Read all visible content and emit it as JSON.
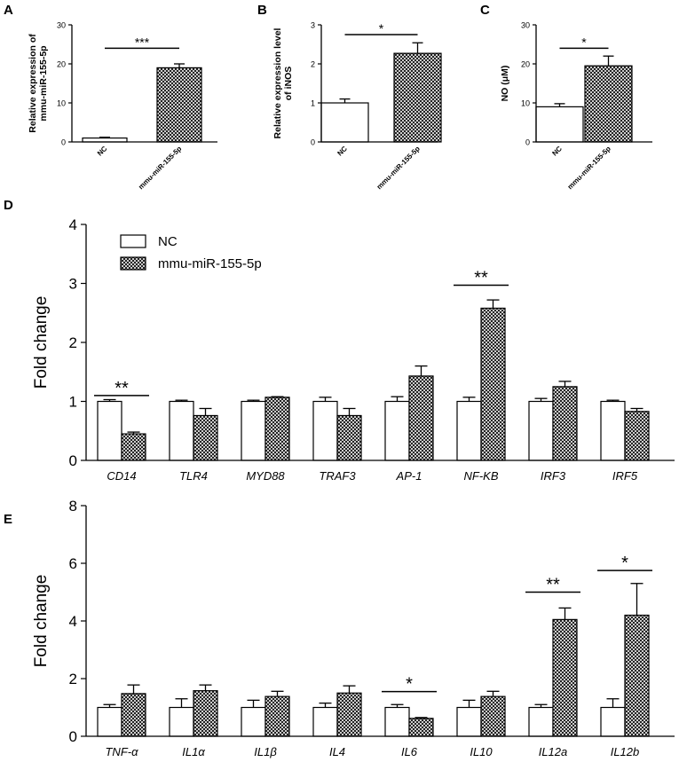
{
  "panel_labels": [
    "A",
    "B",
    "C",
    "D",
    "E"
  ],
  "legend": {
    "nc": "NC",
    "mir": "mmu-miR-155-5p"
  },
  "chart_data": [
    {
      "panel": "A",
      "type": "bar",
      "categories": [
        "NC",
        "mmu-miR-155-5p"
      ],
      "values": [
        1.0,
        19.0
      ],
      "errors": [
        0.2,
        1.0
      ],
      "ylabel": "Relative expression of mmu-miR-155-5p",
      "ylabel_lines": [
        "Relative expression of",
        "mmu-miR-155-5p"
      ],
      "ylim": [
        0,
        30
      ],
      "yticks": [
        0,
        10,
        20,
        30
      ],
      "significance": [
        {
          "label": "***",
          "y": 24
        }
      ]
    },
    {
      "panel": "B",
      "type": "bar",
      "categories": [
        "NC",
        "mmu-miR-155-5p"
      ],
      "values": [
        1.0,
        2.27
      ],
      "errors": [
        0.1,
        0.27
      ],
      "ylabel": "Relative expression level of iNOS",
      "ylabel_lines": [
        "Relative expression level",
        "of iNOS"
      ],
      "ylim": [
        0,
        3
      ],
      "yticks": [
        0,
        1,
        2,
        3
      ],
      "significance": [
        {
          "label": "*",
          "y": 2.75
        }
      ]
    },
    {
      "panel": "C",
      "type": "bar",
      "categories": [
        "NC",
        "mmu-miR-155-5p"
      ],
      "values": [
        9.0,
        19.5
      ],
      "errors": [
        0.8,
        2.5
      ],
      "ylabel": "NO (μM)",
      "ylabel_lines": [
        "NO (μM)"
      ],
      "ylim": [
        0,
        30
      ],
      "yticks": [
        0,
        10,
        20,
        30
      ],
      "significance": [
        {
          "label": "*",
          "y": 24
        }
      ]
    },
    {
      "panel": "D",
      "type": "bar",
      "categories": [
        "CD14",
        "TLR4",
        "MYD88",
        "TRAF3",
        "AP-1",
        "NF-KB",
        "IRF3",
        "IRF5"
      ],
      "series": [
        {
          "name": "NC",
          "values": [
            1.0,
            1.0,
            1.0,
            1.0,
            1.0,
            1.0,
            1.0,
            1.0
          ],
          "errors": [
            0.03,
            0.02,
            0.02,
            0.07,
            0.08,
            0.07,
            0.05,
            0.02
          ]
        },
        {
          "name": "mmu-miR-155-5p",
          "values": [
            0.45,
            0.76,
            1.07,
            0.76,
            1.43,
            2.58,
            1.25,
            0.83
          ],
          "errors": [
            0.03,
            0.12,
            0.01,
            0.12,
            0.17,
            0.14,
            0.09,
            0.05
          ]
        }
      ],
      "ylabel": "Fold change",
      "ylim": [
        0,
        4
      ],
      "yticks": [
        0,
        1,
        2,
        3,
        4
      ],
      "significance": [
        {
          "label": "**",
          "category": 0,
          "y": 1.1
        },
        {
          "label": "**",
          "category": 5,
          "y": 2.97
        }
      ]
    },
    {
      "panel": "E",
      "type": "bar",
      "categories": [
        "TNF-α",
        "IL1α",
        "IL1β",
        "IL4",
        "IL6",
        "IL10",
        "IL12a",
        "IL12b"
      ],
      "series": [
        {
          "name": "NC",
          "values": [
            1.0,
            1.0,
            1.0,
            1.0,
            1.0,
            1.0,
            1.0,
            1.0
          ],
          "errors": [
            0.1,
            0.3,
            0.25,
            0.15,
            0.1,
            0.25,
            0.1,
            0.3
          ]
        },
        {
          "name": "mmu-miR-155-5p",
          "values": [
            1.48,
            1.58,
            1.38,
            1.5,
            0.62,
            1.38,
            4.05,
            4.2
          ],
          "errors": [
            0.3,
            0.2,
            0.18,
            0.25,
            0.03,
            0.18,
            0.4,
            1.1
          ]
        }
      ],
      "ylabel": "Fold change",
      "ylim": [
        0,
        8
      ],
      "yticks": [
        0,
        2,
        4,
        6,
        8
      ],
      "significance": [
        {
          "label": "*",
          "category": 4,
          "y": 1.55
        },
        {
          "label": "**",
          "category": 6,
          "y": 5.0
        },
        {
          "label": "*",
          "category": 7,
          "y": 5.75
        }
      ]
    }
  ]
}
